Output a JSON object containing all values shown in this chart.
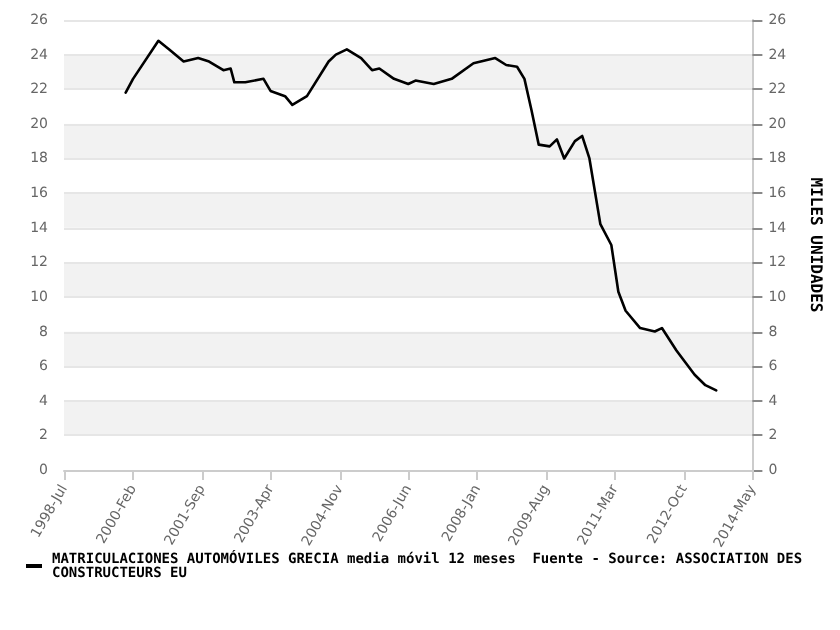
{
  "chart_data": {
    "type": "line",
    "x": [
      "1999-12",
      "2000-02",
      "2000-09",
      "2000-12",
      "2001-04",
      "2001-08",
      "2001-11",
      "2002-03",
      "2002-05",
      "2002-06",
      "2002-09",
      "2003-02",
      "2003-04",
      "2003-08",
      "2003-10",
      "2004-02",
      "2004-08",
      "2004-10",
      "2005-01",
      "2005-05",
      "2005-08",
      "2005-10",
      "2006-02",
      "2006-06",
      "2006-08",
      "2007-01",
      "2007-06",
      "2007-12",
      "2008-04",
      "2008-06",
      "2008-09",
      "2008-12",
      "2009-02",
      "2009-04",
      "2009-06",
      "2009-09",
      "2009-11",
      "2010-01",
      "2010-04",
      "2010-06",
      "2010-08",
      "2010-11",
      "2011-02",
      "2011-04",
      "2011-06",
      "2011-10",
      "2012-02",
      "2012-04",
      "2012-08",
      "2013-01",
      "2013-04",
      "2013-07"
    ],
    "series": [
      {
        "name": "MATRICULACIONES AUTOMÓVILES GRECIA media móvil 12 meses  Fuente - Source: ASSOCIATION DES CONSTRUCTEURS EU",
        "color": "#000000",
        "values": [
          21.8,
          22.6,
          24.8,
          24.3,
          23.6,
          23.8,
          23.6,
          23.1,
          23.2,
          22.4,
          22.4,
          22.6,
          21.9,
          21.6,
          21.1,
          21.6,
          23.6,
          24.0,
          24.3,
          23.8,
          23.1,
          23.2,
          22.6,
          22.3,
          22.5,
          22.3,
          22.6,
          23.5,
          23.7,
          23.8,
          23.4,
          23.3,
          22.6,
          20.8,
          18.8,
          18.7,
          19.1,
          18.0,
          19.0,
          19.3,
          18.0,
          14.2,
          13.0,
          10.3,
          9.2,
          8.2,
          8.0,
          8.2,
          6.9,
          5.5,
          4.9,
          4.6
        ]
      }
    ],
    "xlim": [
      "1998-07",
      "2014-05"
    ],
    "xticks": [
      {
        "value": "1998-07",
        "label": "1998-Jul"
      },
      {
        "value": "2000-02",
        "label": "2000-Feb"
      },
      {
        "value": "2001-09",
        "label": "2001-Sep"
      },
      {
        "value": "2003-04",
        "label": "2003-Apr"
      },
      {
        "value": "2004-11",
        "label": "2004-Nov"
      },
      {
        "value": "2006-06",
        "label": "2006-Jun"
      },
      {
        "value": "2008-01",
        "label": "2008-Jan"
      },
      {
        "value": "2009-08",
        "label": "2009-Aug"
      },
      {
        "value": "2011-03",
        "label": "2011-Mar"
      },
      {
        "value": "2012-10",
        "label": "2012-Oct"
      },
      {
        "value": "2014-05",
        "label": "2014-May"
      }
    ],
    "ylim": [
      0,
      26
    ],
    "yticks": [
      0,
      2,
      4,
      6,
      8,
      10,
      12,
      14,
      16,
      18,
      20,
      22,
      24,
      26
    ],
    "y2lim": [
      0,
      26
    ],
    "y2ticks": [
      0,
      2,
      4,
      6,
      8,
      10,
      12,
      14,
      16,
      18,
      20,
      22,
      24,
      26
    ],
    "y2label": "MILES UNIDADES",
    "grid": "y",
    "legend": "bottom",
    "marker": "none",
    "line_style": "solid"
  }
}
